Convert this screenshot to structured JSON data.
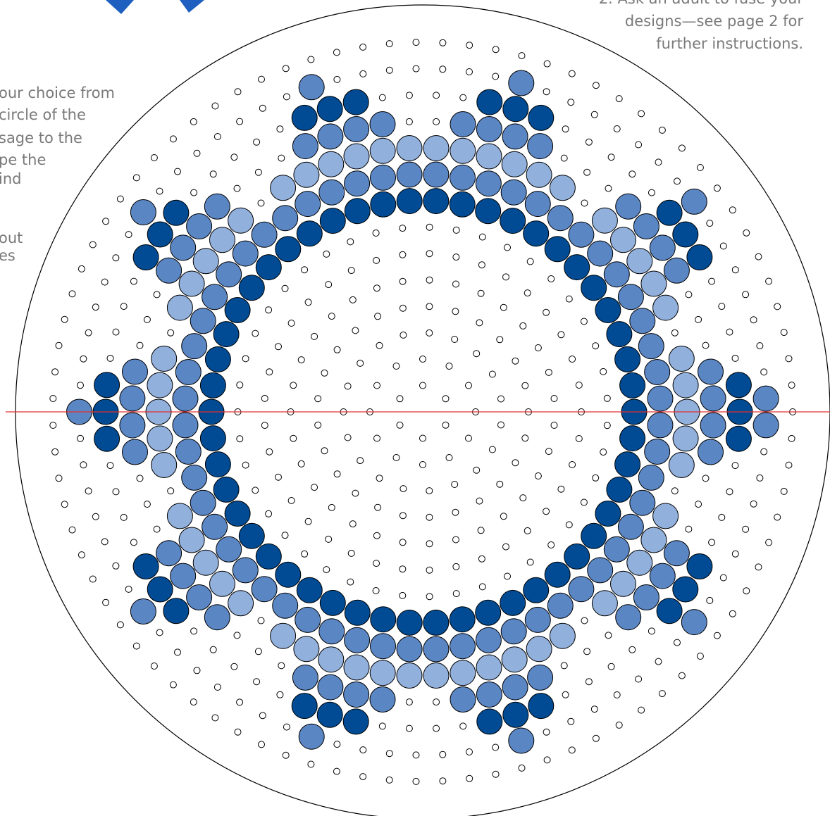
{
  "instructions_right": {
    "lines": [
      "2. Ask an adult to fuse your",
      "designs—see page 2 for",
      "further instructions."
    ]
  },
  "instructions_left": {
    "lines": [
      "our choice from",
      "circle of the",
      "sage to the",
      "pe the",
      "ind",
      "out",
      "es"
    ]
  }
}
